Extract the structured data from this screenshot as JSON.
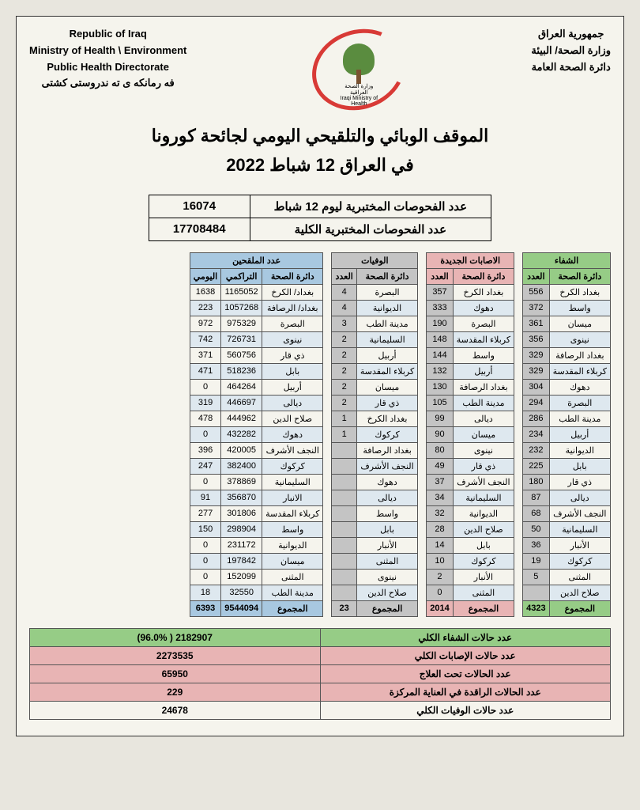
{
  "header_left": {
    "line1": "Republic of Iraq",
    "line2": "Ministry of Health \\ Environment",
    "line3": "Public Health Directorate",
    "line4": "فه رمانكه ى ته ندروستى كشتى"
  },
  "header_right": {
    "line1": "جمهورية العراق",
    "line2": "وزارة الصحة/ البيئة",
    "line3": "دائرة الصحة العامة"
  },
  "logo_label": "وزارة الصحة العراقية",
  "logo_sub": "Iraqi Ministry of Health",
  "title_line1": "الموقف الوبائي والتلقيحي اليومي لجائحة كورونا",
  "title_line2": "في العراق  12  شباط 2022",
  "tests": {
    "daily_label": "عدد الفحوصات المختبرية  ليوم  12  شباط",
    "daily_value": "16074",
    "total_label": "عدد الفحوصات المختبرية الكلية",
    "total_value": "17708484"
  },
  "sections": {
    "recovery": {
      "title": "الشفاء",
      "cols": [
        "دائرة الصحة",
        "العدد"
      ]
    },
    "cases": {
      "title": "الاصابات الجديدة",
      "cols": [
        "دائرة الصحة",
        "العدد"
      ]
    },
    "deaths": {
      "title": "الوفيات",
      "cols": [
        "دائرة الصحة",
        "العدد"
      ]
    },
    "vacc": {
      "title": "عدد الملقحين",
      "cols": [
        "دائرة الصحة",
        "التراكمي",
        "اليومي"
      ]
    }
  },
  "recovery_rows": [
    [
      "بغداد الكرخ",
      "556"
    ],
    [
      "واسط",
      "372"
    ],
    [
      "ميسان",
      "361"
    ],
    [
      "نينوى",
      "356"
    ],
    [
      "بغداد الرصافة",
      "329"
    ],
    [
      "كربلاء المقدسة",
      "329"
    ],
    [
      "دهوك",
      "304"
    ],
    [
      "البصرة",
      "294"
    ],
    [
      "مدينة الطب",
      "286"
    ],
    [
      "أربيل",
      "234"
    ],
    [
      "الديوانية",
      "232"
    ],
    [
      "بابل",
      "225"
    ],
    [
      "ذي قار",
      "180"
    ],
    [
      "ديالى",
      "87"
    ],
    [
      "النجف الأشرف",
      "68"
    ],
    [
      "السليمانية",
      "50"
    ],
    [
      "الأنبار",
      "36"
    ],
    [
      "كركوك",
      "19"
    ],
    [
      "المثنى",
      "5"
    ],
    [
      "صلاح الدين",
      ""
    ]
  ],
  "recovery_total": [
    "المجموع",
    "4323"
  ],
  "cases_rows": [
    [
      "بغداد الكرخ",
      "357"
    ],
    [
      "دهوك",
      "333"
    ],
    [
      "البصرة",
      "190"
    ],
    [
      "كربلاء المقدسة",
      "148"
    ],
    [
      "واسط",
      "144"
    ],
    [
      "أربيل",
      "132"
    ],
    [
      "بغداد الرصافة",
      "130"
    ],
    [
      "مدينة الطب",
      "105"
    ],
    [
      "ديالى",
      "99"
    ],
    [
      "ميسان",
      "90"
    ],
    [
      "نينوى",
      "80"
    ],
    [
      "ذي قار",
      "49"
    ],
    [
      "النجف الأشرف",
      "37"
    ],
    [
      "السليمانية",
      "34"
    ],
    [
      "الديوانية",
      "32"
    ],
    [
      "صلاح الدين",
      "28"
    ],
    [
      "بابل",
      "14"
    ],
    [
      "كركوك",
      "10"
    ],
    [
      "الأنبار",
      "2"
    ],
    [
      "المثنى",
      "0"
    ]
  ],
  "cases_total": [
    "المجموع",
    "2014"
  ],
  "deaths_rows": [
    [
      "البصرة",
      "4"
    ],
    [
      "الديوانية",
      "4"
    ],
    [
      "مدينة الطب",
      "3"
    ],
    [
      "السليمانية",
      "2"
    ],
    [
      "أربيل",
      "2"
    ],
    [
      "كربلاء المقدسة",
      "2"
    ],
    [
      "ميسان",
      "2"
    ],
    [
      "ذي قار",
      "2"
    ],
    [
      "بغداد الكرخ",
      "1"
    ],
    [
      "كركوك",
      "1"
    ],
    [
      "بغداد الرصافة",
      ""
    ],
    [
      "النجف الأشرف",
      ""
    ],
    [
      "دهوك",
      ""
    ],
    [
      "ديالى",
      ""
    ],
    [
      "واسط",
      ""
    ],
    [
      "بابل",
      ""
    ],
    [
      "الأنبار",
      ""
    ],
    [
      "المثنى",
      ""
    ],
    [
      "نينوى",
      ""
    ],
    [
      "صلاح الدين",
      ""
    ]
  ],
  "deaths_total": [
    "المجموع",
    "23"
  ],
  "vacc_rows": [
    [
      "بغداد/ الكرخ",
      "1165052",
      "1638"
    ],
    [
      "بغداد/ الرصافة",
      "1057268",
      "223"
    ],
    [
      "البصرة",
      "975329",
      "972"
    ],
    [
      "نينوى",
      "726731",
      "742"
    ],
    [
      "ذي قار",
      "560756",
      "371"
    ],
    [
      "بابل",
      "518236",
      "471"
    ],
    [
      "أربيل",
      "464264",
      "0"
    ],
    [
      "ديالى",
      "446697",
      "319"
    ],
    [
      "صلاح الدين",
      "444962",
      "478"
    ],
    [
      "دهوك",
      "432282",
      "0"
    ],
    [
      "النجف الأشرف",
      "420005",
      "396"
    ],
    [
      "كركوك",
      "382400",
      "247"
    ],
    [
      "السليمانية",
      "378869",
      "0"
    ],
    [
      "الانبار",
      "356870",
      "91"
    ],
    [
      "كربلاء المقدسة",
      "301806",
      "277"
    ],
    [
      "واسط",
      "298904",
      "150"
    ],
    [
      "الديوانية",
      "231172",
      "0"
    ],
    [
      "ميسان",
      "197842",
      "0"
    ],
    [
      "المثنى",
      "152099",
      "0"
    ],
    [
      "مدينة الطب",
      "32550",
      "18"
    ]
  ],
  "vacc_total": [
    "المجموع",
    "9544094",
    "6393"
  ],
  "summary": [
    {
      "label": "عدد حالات الشفاء الكلي",
      "value": "2182907  ( 96.0%)",
      "cls": "sum-green"
    },
    {
      "label": "عدد حالات الإصابات الكلي",
      "value": "2273535",
      "cls": "sum-pink"
    },
    {
      "label": "عدد الحالات تحت العلاج",
      "value": "65950",
      "cls": "sum-pink"
    },
    {
      "label": "عدد الحالات الراقدة في العناية المركزة",
      "value": "229",
      "cls": "sum-pink"
    },
    {
      "label": "عدد حالات الوفيات الكلي",
      "value": "24678",
      "cls": "sum-plain"
    }
  ],
  "colors": {
    "green": "#96cc86",
    "pink": "#e8b4b4",
    "gray": "#c4c4c4",
    "blue": "#a8c8e0",
    "row_even": "#dee8ef",
    "row_odd": "#f5f4ed",
    "ring": "#d83a36",
    "tree": "#5a8c3f"
  }
}
